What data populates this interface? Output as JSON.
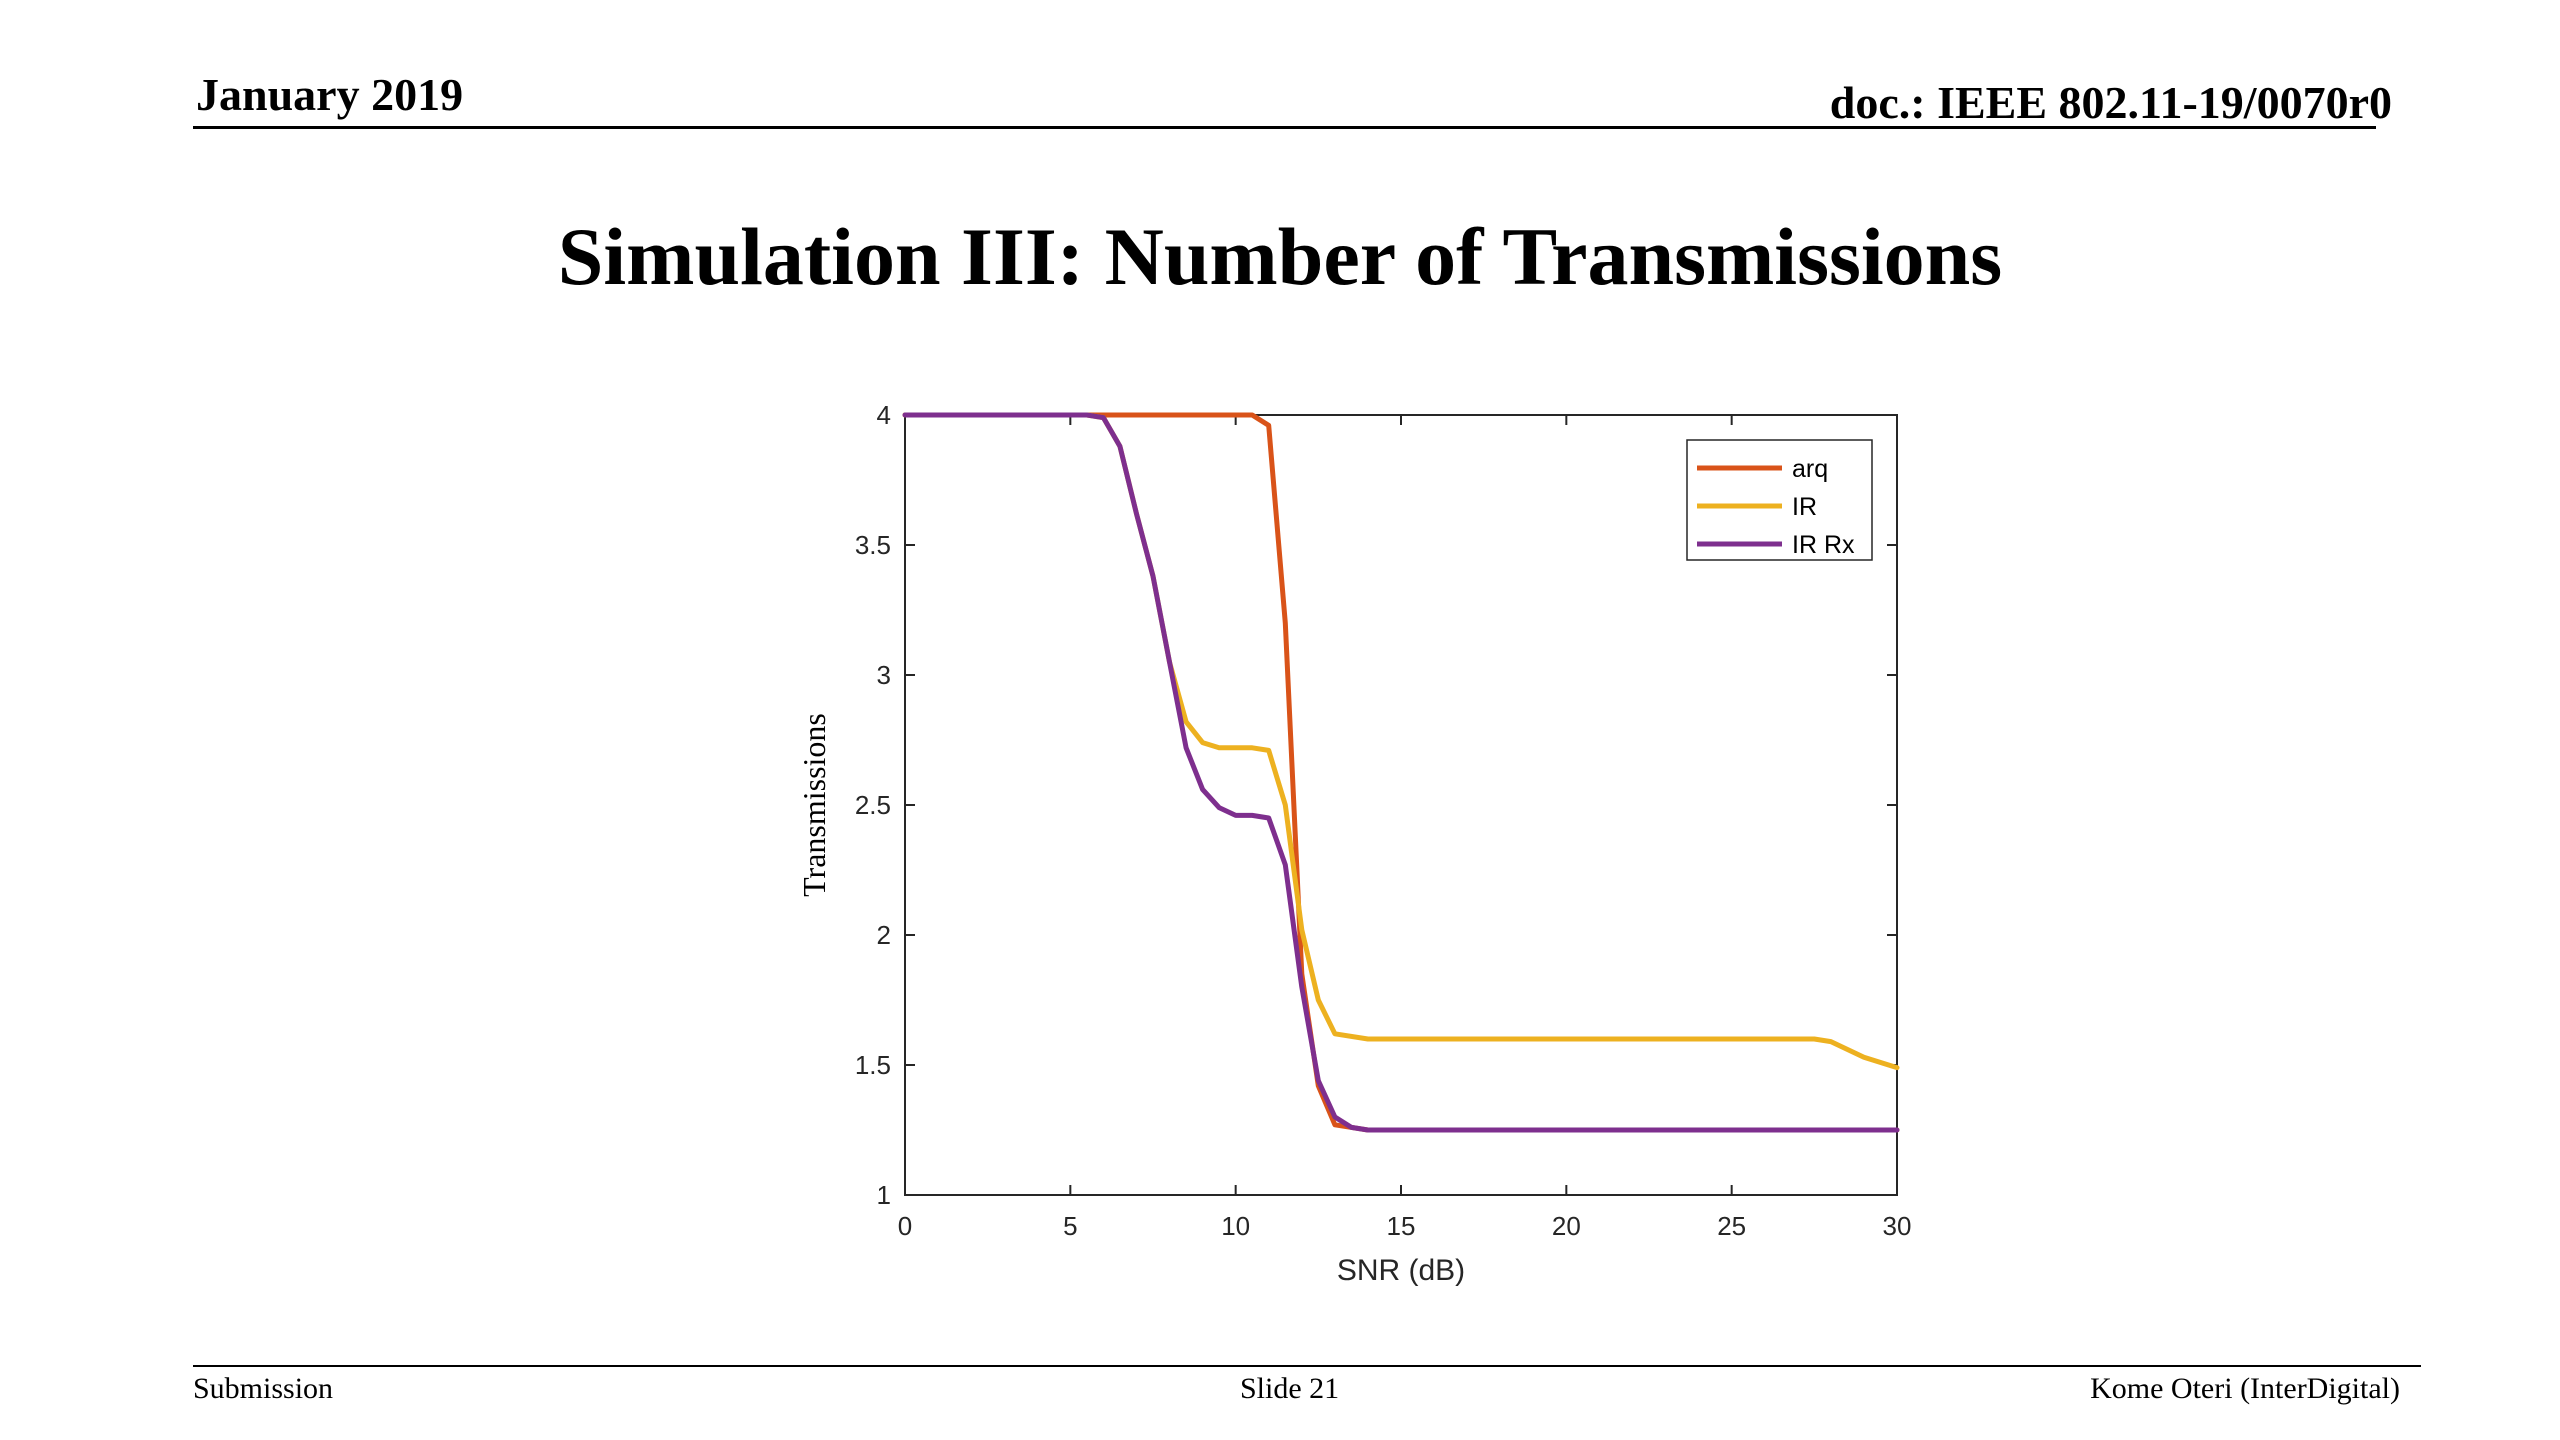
{
  "header": {
    "date": "January 2019",
    "doc": "doc.: IEEE 802.11-19/0070r0"
  },
  "slide": {
    "title": "Simulation III: Number of Transmissions"
  },
  "footer": {
    "left": "Submission",
    "center": "Slide 21",
    "right": "Kome Oteri (InterDigital)"
  },
  "chart_data": {
    "type": "line",
    "title": "",
    "xlabel": "SNR (dB)",
    "ylabel": "Transmissions",
    "xlim": [
      0,
      30
    ],
    "ylim": [
      1,
      4
    ],
    "xticks": [
      0,
      5,
      10,
      15,
      20,
      25,
      30
    ],
    "yticks": [
      1,
      1.5,
      2,
      2.5,
      3,
      3.5,
      4
    ],
    "ytick_labels": [
      "1",
      "1.5",
      "2",
      "2.5",
      "3",
      "3.5",
      "4"
    ],
    "grid": false,
    "legend_position": "top-right",
    "series": [
      {
        "name": "arq",
        "color": "#D95319",
        "x": [
          0,
          5,
          10.5,
          11,
          11.5,
          12,
          12.5,
          13,
          14,
          15,
          20,
          25,
          30
        ],
        "y": [
          4,
          4,
          4,
          3.96,
          3.2,
          1.85,
          1.42,
          1.27,
          1.25,
          1.25,
          1.25,
          1.25,
          1.25
        ]
      },
      {
        "name": "IR",
        "color": "#EDB120",
        "x": [
          0,
          5,
          5.5,
          6,
          6.5,
          7,
          7.5,
          8,
          8.5,
          9,
          9.5,
          10,
          10.5,
          11,
          11.5,
          12,
          12.5,
          13,
          14,
          15,
          20,
          25,
          27.5,
          28,
          29,
          30
        ],
        "y": [
          4,
          4,
          4,
          3.99,
          3.88,
          3.62,
          3.38,
          3.05,
          2.82,
          2.74,
          2.72,
          2.72,
          2.72,
          2.71,
          2.5,
          2.02,
          1.75,
          1.62,
          1.6,
          1.6,
          1.6,
          1.6,
          1.6,
          1.59,
          1.53,
          1.49
        ]
      },
      {
        "name": "IR Rx",
        "color": "#7E2F8E",
        "x": [
          0,
          5,
          5.5,
          6,
          6.5,
          7,
          7.5,
          8,
          8.5,
          9,
          9.5,
          10,
          10.5,
          11,
          11.5,
          12,
          12.5,
          13,
          13.5,
          14,
          15,
          20,
          25,
          30
        ],
        "y": [
          4,
          4,
          4,
          3.99,
          3.88,
          3.62,
          3.38,
          3.05,
          2.72,
          2.56,
          2.49,
          2.46,
          2.46,
          2.45,
          2.27,
          1.8,
          1.44,
          1.3,
          1.26,
          1.25,
          1.25,
          1.25,
          1.25,
          1.25
        ]
      }
    ]
  }
}
